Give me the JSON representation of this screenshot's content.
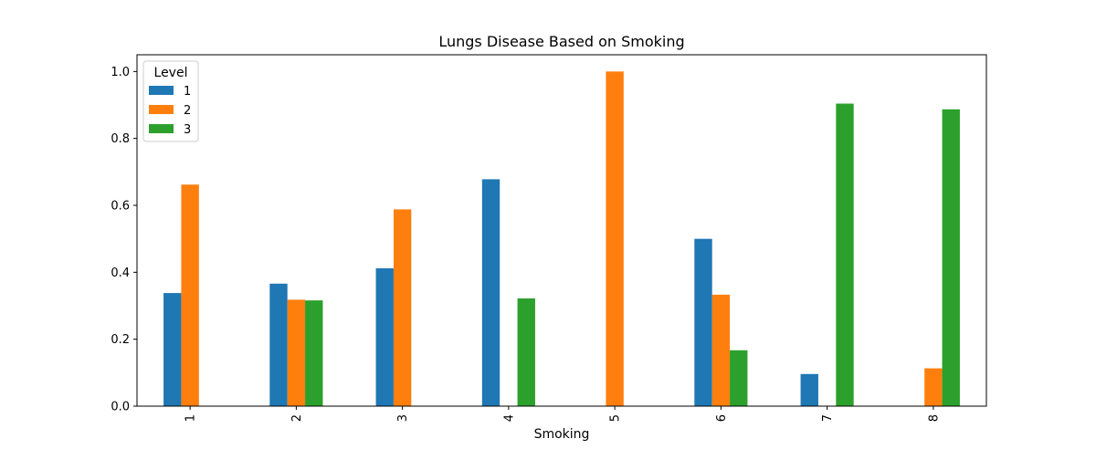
{
  "chart_data": {
    "type": "bar",
    "title": "Lungs Disease Based on Smoking",
    "xlabel": "Smoking",
    "ylabel": "",
    "categories": [
      "1",
      "2",
      "3",
      "4",
      "5",
      "6",
      "7",
      "8"
    ],
    "ylim": [
      0,
      1.05
    ],
    "yticks": [
      0.0,
      0.2,
      0.4,
      0.6,
      0.8,
      1.0
    ],
    "ytick_labels": [
      "0.0",
      "0.2",
      "0.4",
      "0.6",
      "0.8",
      "1.0"
    ],
    "grid": false,
    "legend": {
      "title": "Level",
      "placement": "top-left"
    },
    "series": [
      {
        "name": "1",
        "color": "#1f77b4",
        "values": [
          0.338,
          0.366,
          0.412,
          0.678,
          0,
          0.5,
          0.096,
          0
        ]
      },
      {
        "name": "2",
        "color": "#ff7f0e",
        "values": [
          0.662,
          0.318,
          0.588,
          0,
          1.0,
          0.333,
          0,
          0.113
        ]
      },
      {
        "name": "3",
        "color": "#2ca02c",
        "values": [
          0,
          0.316,
          0,
          0.322,
          0,
          0.167,
          0.904,
          0.887
        ]
      }
    ]
  }
}
